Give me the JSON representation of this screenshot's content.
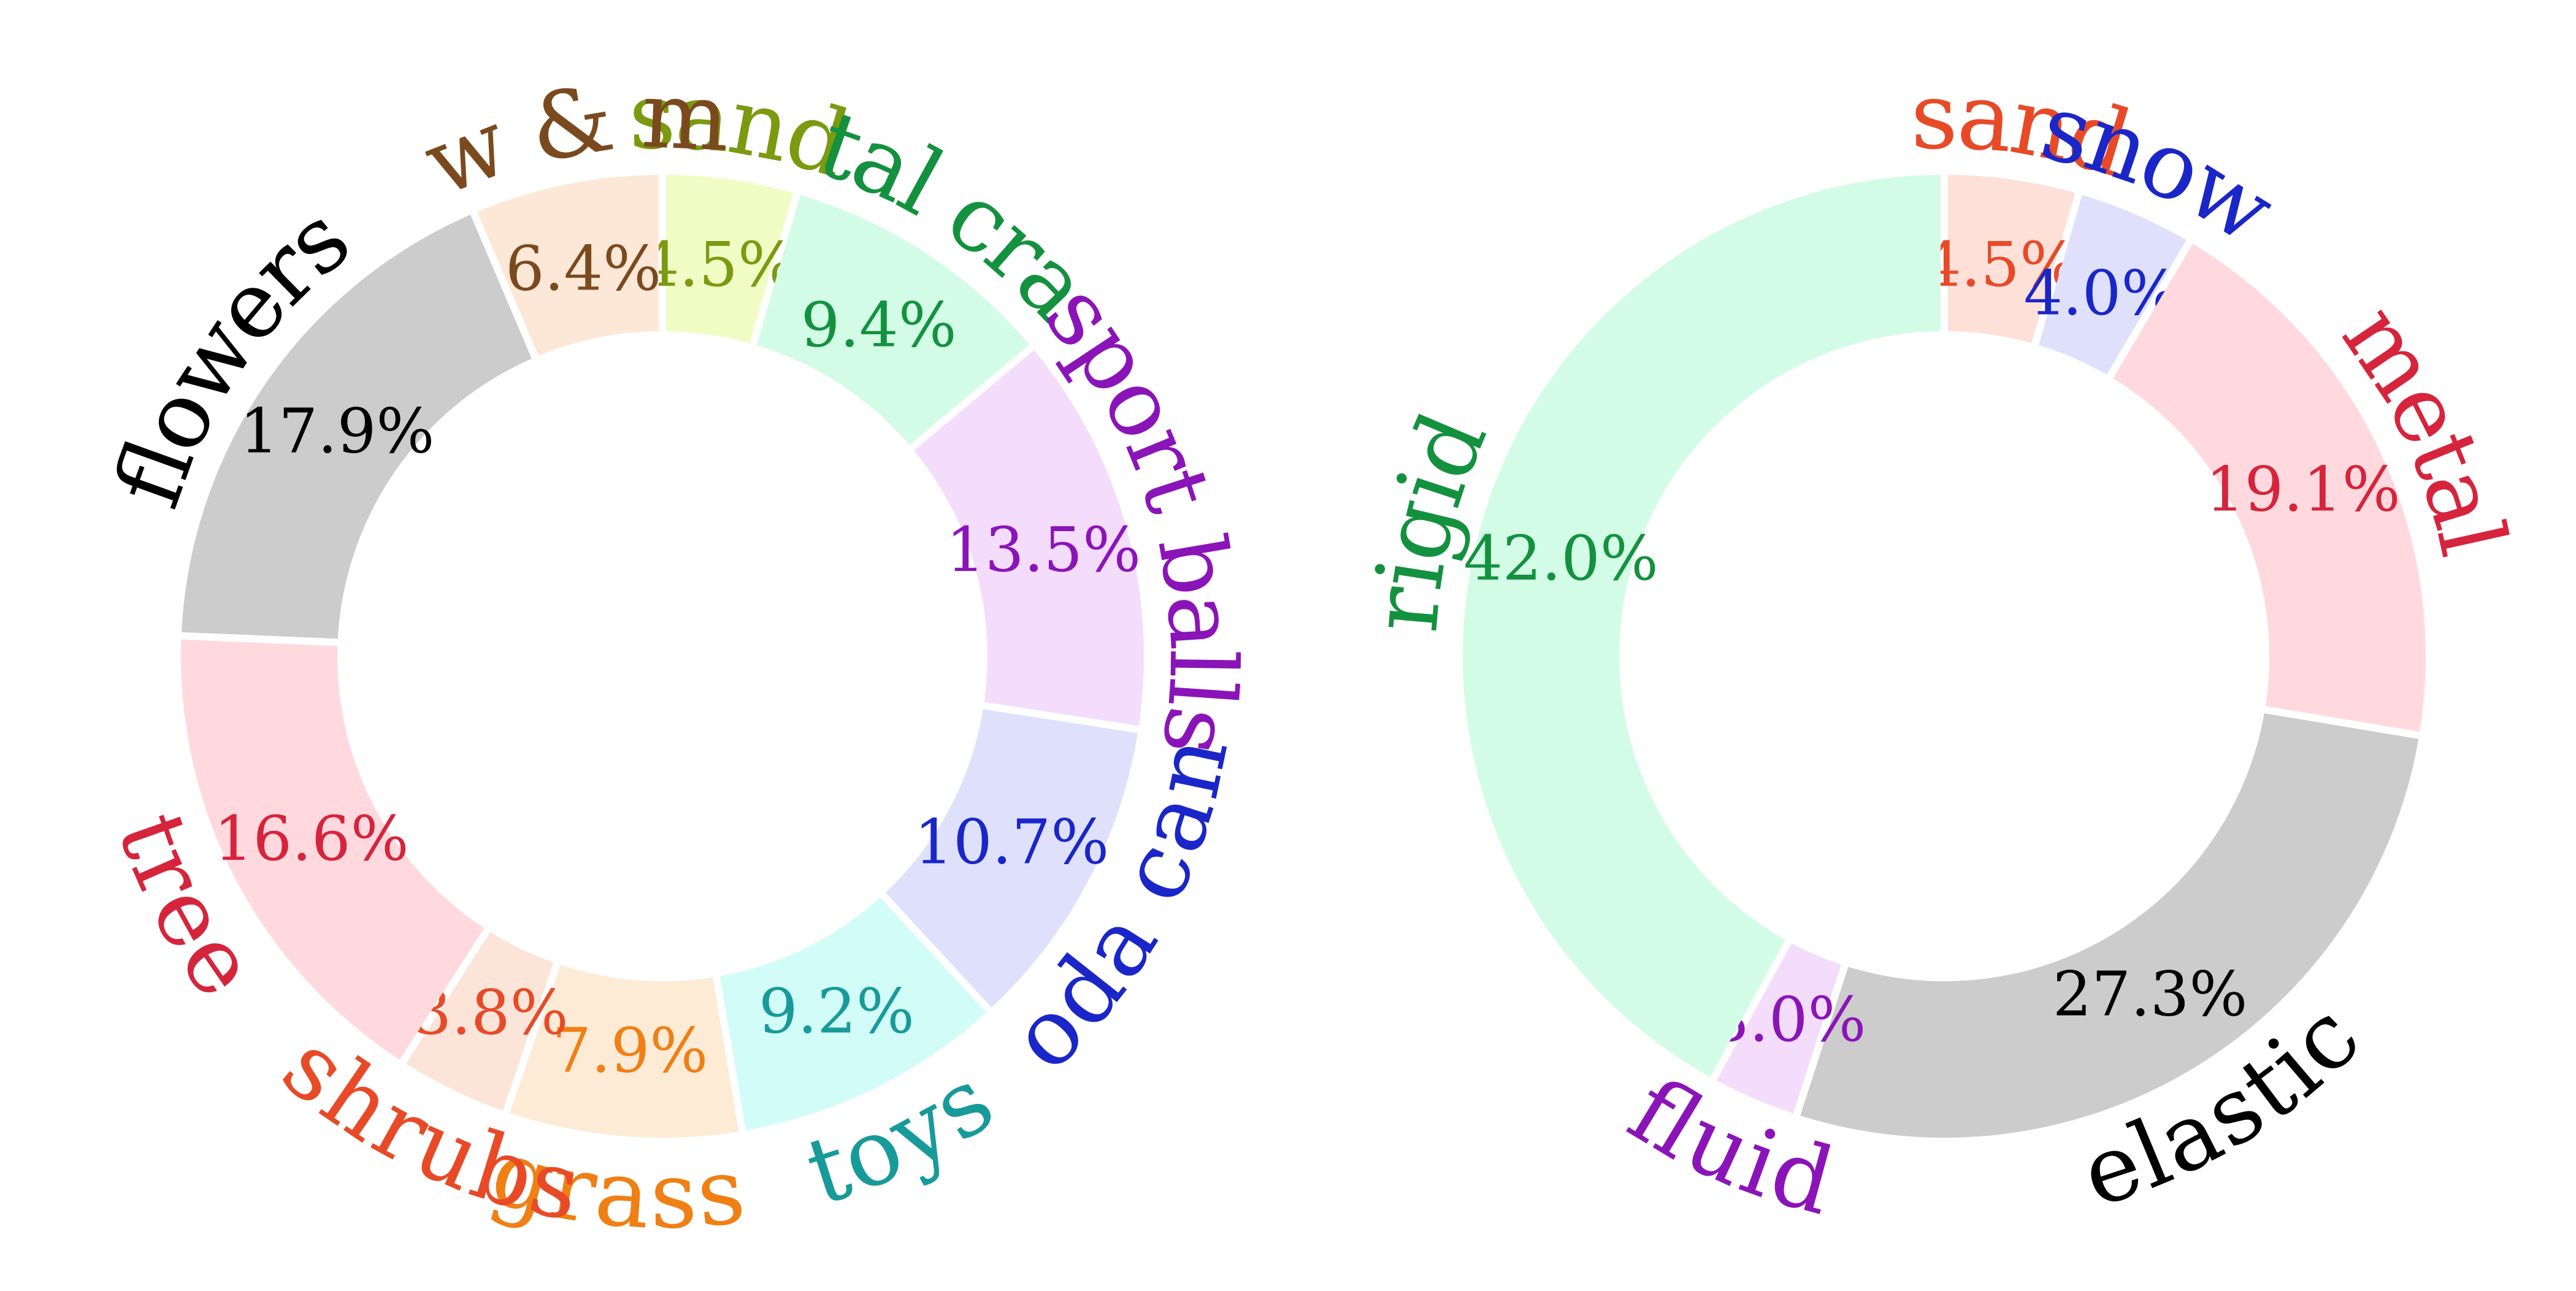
{
  "chart_data": [
    {
      "type": "donut",
      "categories": [
        "sand",
        "metal crates",
        "sport balls",
        "soda cans",
        "toys",
        "grass",
        "shrubs",
        "tree",
        "flowers",
        "snow & mud"
      ],
      "values": [
        4.5,
        9.4,
        13.5,
        10.7,
        9.2,
        7.9,
        3.8,
        16.6,
        17.9,
        6.4
      ],
      "value_labels": [
        "4.5%",
        "9.4%",
        "13.5%",
        "10.7%",
        "9.2%",
        "7.9%",
        "3.8%",
        "16.6%",
        "17.9%",
        "6.4%"
      ],
      "fill_colors": [
        "#f0fcc4",
        "#d2fce6",
        "#f3dcfc",
        "#dfe1fc",
        "#d2fcf8",
        "#fdebd6",
        "#fde4d8",
        "#ffd9de",
        "#cccccc",
        "#fde8d8"
      ],
      "text_colors": [
        "#7b9a10",
        "#14913f",
        "#8a14b8",
        "#1a26c8",
        "#189a9a",
        "#f07f14",
        "#e84a28",
        "#d6243c",
        "#000000",
        "#7a4a1e"
      ],
      "start_angle_deg": 0,
      "direction": "clockwise"
    },
    {
      "type": "donut",
      "categories": [
        "sand",
        "snow",
        "metal",
        "elastic",
        "fluid",
        "rigid"
      ],
      "values": [
        4.5,
        4.0,
        19.1,
        27.3,
        3.0,
        42.0
      ],
      "value_labels": [
        "4.5%",
        "4.0%",
        "19.1%",
        "27.3%",
        "3.0%",
        "42.0%"
      ],
      "fill_colors": [
        "#fde0d8",
        "#dfe1fc",
        "#ffd9de",
        "#cccccc",
        "#f3dcfc",
        "#d2fce6"
      ],
      "text_colors": [
        "#e84a28",
        "#1a26c8",
        "#d6243c",
        "#000000",
        "#8a14b8",
        "#14913f"
      ],
      "start_angle_deg": 0,
      "direction": "clockwise"
    }
  ]
}
